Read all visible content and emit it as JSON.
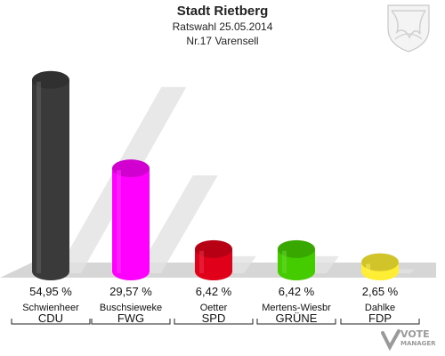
{
  "header": {
    "title": "Stadt Rietberg",
    "subtitle": "Ratswahl 25.05.2014",
    "district": "Nr.17 Varensell"
  },
  "logo": {
    "text_line1": "VOTE",
    "text_line2": "MANAGER"
  },
  "chart_data": {
    "type": "bar",
    "categories": [
      "CDU",
      "FWG",
      "SPD",
      "GRÜNE",
      "FDP"
    ],
    "candidates": [
      "Schwienheer",
      "Buschsieweke",
      "Oetter",
      "Mertens-Wiesbr",
      "Dahlke"
    ],
    "values": [
      54.95,
      29.57,
      6.42,
      6.42,
      2.65
    ],
    "value_labels": [
      "54,95 %",
      "29,57 %",
      "6,42 %",
      "6,42 %",
      "2,65 %"
    ],
    "colors": [
      "#3a3a3a",
      "#ff00ff",
      "#e0001a",
      "#44cc00",
      "#ffee33"
    ],
    "ylim": [
      0,
      60
    ],
    "grid": false,
    "legend": "none"
  }
}
